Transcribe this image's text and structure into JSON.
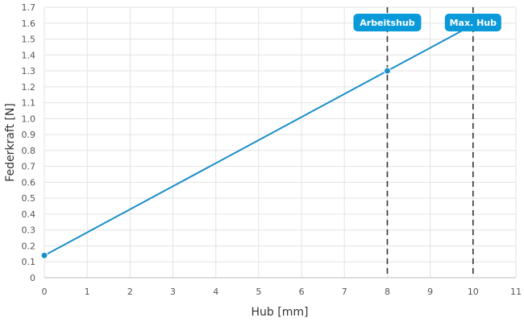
{
  "chart_data": {
    "type": "line",
    "title": "",
    "xlabel": "Hub [mm]",
    "ylabel": "Federkraft [N]",
    "xlim": [
      0,
      11
    ],
    "ylim": [
      0,
      1.7
    ],
    "grid": true,
    "x_ticks": [
      "0",
      "1",
      "2",
      "3",
      "4",
      "5",
      "6",
      "7",
      "8",
      "9",
      "10",
      "11"
    ],
    "y_ticks": [
      "0",
      "0.1",
      "0.2",
      "0.3",
      "0.4",
      "0.5",
      "0.6",
      "0.7",
      "0.8",
      "0.9",
      "1.0",
      "1.1",
      "1.2",
      "1.3",
      "1.4",
      "1.5",
      "1.6",
      "1.7"
    ],
    "series": [
      {
        "x": [
          0,
          10
        ],
        "y": [
          0.14,
          1.59
        ]
      }
    ],
    "markers": [
      {
        "x": 0,
        "y": 0.14
      },
      {
        "x": 8,
        "y": 1.3
      }
    ],
    "reference_lines": [
      {
        "x": 8,
        "label": "Arbeitshub"
      },
      {
        "x": 10,
        "label": "Max. Hub"
      }
    ],
    "colors": {
      "line": "#1a8fc8",
      "badge": "#0a9ad9",
      "reference": "#333333",
      "grid": "#e3e3e3"
    }
  }
}
